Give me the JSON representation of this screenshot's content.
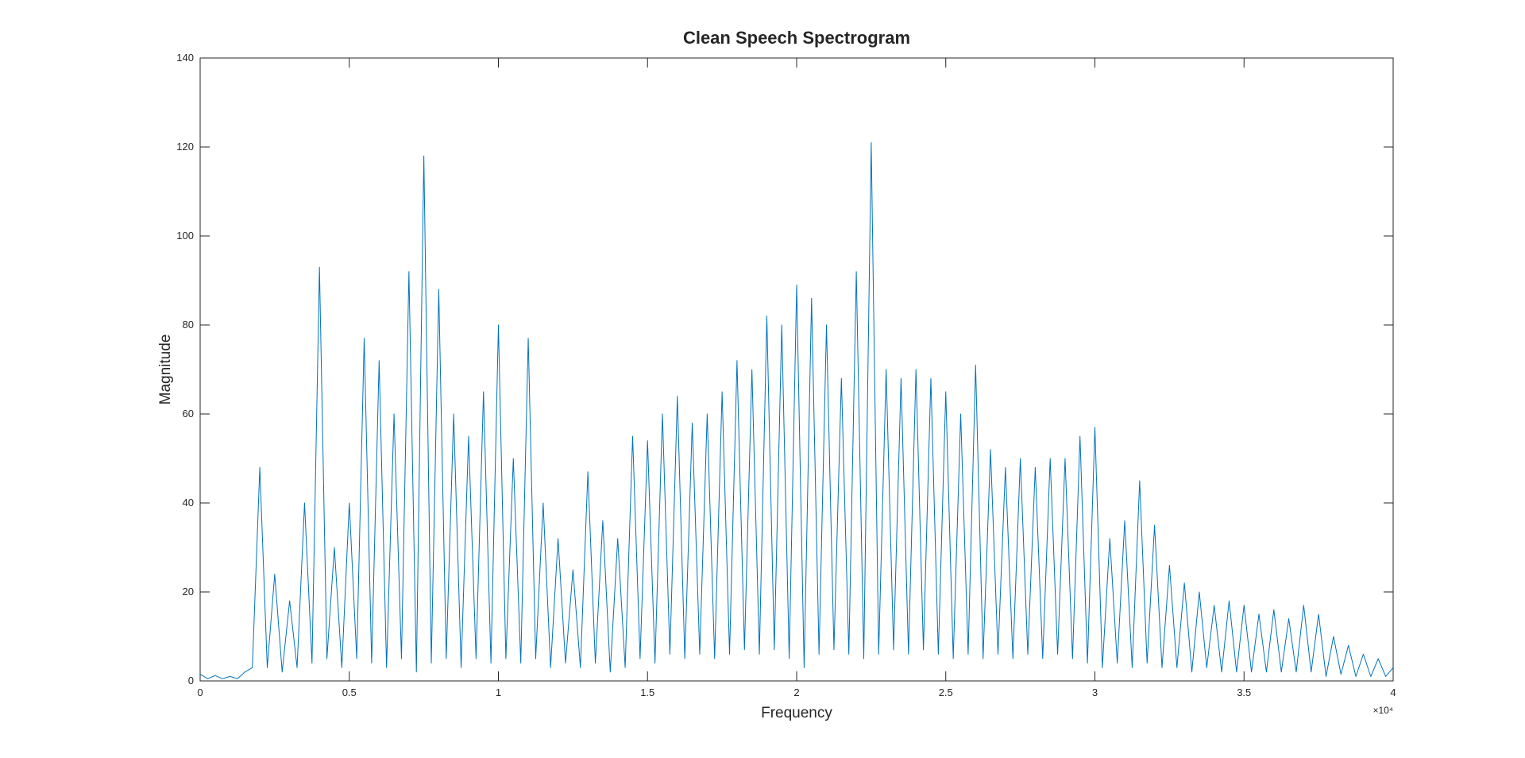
{
  "chart_data": {
    "type": "line",
    "title": "Clean Speech Spectrogram",
    "x_label": "Frequency",
    "y_label": "Magnitude",
    "x_multiplier": "×10⁴",
    "xlim": [
      0,
      40000
    ],
    "ylim": [
      0,
      140
    ],
    "xticks": [
      0,
      {
        "value": 5000,
        "label": "0.5"
      },
      {
        "value": 10000,
        "label": "1"
      },
      {
        "value": 15000,
        "label": "1.5"
      },
      {
        "value": 20000,
        "label": "2"
      },
      {
        "value": 25000,
        "label": "2.5"
      },
      {
        "value": 30000,
        "label": "3"
      },
      {
        "value": 35000,
        "label": "3.5"
      },
      {
        "value": 40000,
        "label": "4"
      }
    ],
    "yticks": [
      0,
      20,
      40,
      60,
      80,
      100,
      120,
      140
    ],
    "grid": false,
    "x": [
      0,
      250,
      500,
      750,
      1000,
      1250,
      1500,
      1750,
      2000,
      2250,
      2500,
      2750,
      3000,
      3250,
      3500,
      3750,
      4000,
      4250,
      4500,
      4750,
      5000,
      5250,
      5500,
      5750,
      6000,
      6250,
      6500,
      6750,
      7000,
      7250,
      7500,
      7750,
      8000,
      8250,
      8500,
      8750,
      9000,
      9250,
      9500,
      9750,
      10000,
      10250,
      10500,
      10750,
      11000,
      11250,
      11500,
      11750,
      12000,
      12250,
      12500,
      12750,
      13000,
      13250,
      13500,
      13750,
      14000,
      14250,
      14500,
      14750,
      15000,
      15250,
      15500,
      15750,
      16000,
      16250,
      16500,
      16750,
      17000,
      17250,
      17500,
      17750,
      18000,
      18250,
      18500,
      18750,
      19000,
      19250,
      19500,
      19750,
      20000,
      20250,
      20500,
      20750,
      21000,
      21250,
      21500,
      21750,
      22000,
      22250,
      22500,
      22750,
      23000,
      23250,
      23500,
      23750,
      24000,
      24250,
      24500,
      24750,
      25000,
      25250,
      25500,
      25750,
      26000,
      26250,
      26500,
      26750,
      27000,
      27250,
      27500,
      27750,
      28000,
      28250,
      28500,
      28750,
      29000,
      29250,
      29500,
      29750,
      30000,
      30250,
      30500,
      30750,
      31000,
      31250,
      31500,
      31750,
      32000,
      32250,
      32500,
      32750,
      33000,
      33250,
      33500,
      33750,
      34000,
      34250,
      34500,
      34750,
      35000,
      35250,
      35500,
      35750,
      36000,
      36250,
      36500,
      36750,
      37000,
      37250,
      37500,
      37750,
      38000,
      38250,
      38500,
      38750,
      39000,
      39250,
      39500,
      39750,
      40000
    ],
    "series": [
      {
        "color": "#0072bd",
        "values": [
          1.5,
          0.5,
          1.2,
          0.5,
          1.0,
          0.5,
          2,
          3,
          48,
          3,
          24,
          2,
          18,
          3,
          40,
          4,
          93,
          5,
          30,
          3,
          40,
          5,
          77,
          4,
          72,
          3,
          60,
          5,
          92,
          2,
          118,
          4,
          88,
          5,
          60,
          3,
          55,
          5,
          65,
          4,
          80,
          5,
          50,
          4,
          77,
          5,
          40,
          3,
          32,
          4,
          25,
          3,
          47,
          4,
          36,
          2,
          32,
          3,
          55,
          5,
          54,
          4,
          60,
          6,
          64,
          5,
          58,
          6,
          60,
          5,
          65,
          6,
          72,
          7,
          70,
          6,
          82,
          7,
          80,
          5,
          89,
          3,
          86,
          6,
          80,
          7,
          68,
          6,
          92,
          5,
          121,
          6,
          70,
          7,
          68,
          6,
          70,
          7,
          68,
          6,
          65,
          5,
          60,
          6,
          71,
          5,
          52,
          6,
          48,
          5,
          50,
          6,
          48,
          5,
          50,
          6,
          50,
          5,
          55,
          4,
          57,
          3,
          32,
          4,
          36,
          3,
          45,
          4,
          35,
          3,
          26,
          3,
          22,
          2,
          20,
          3,
          17,
          2,
          18,
          2,
          17,
          2,
          15,
          2,
          16,
          2,
          14,
          2,
          17,
          2,
          15,
          1,
          10,
          1.5,
          8,
          1,
          6,
          1,
          5,
          1,
          3
        ]
      }
    ]
  }
}
